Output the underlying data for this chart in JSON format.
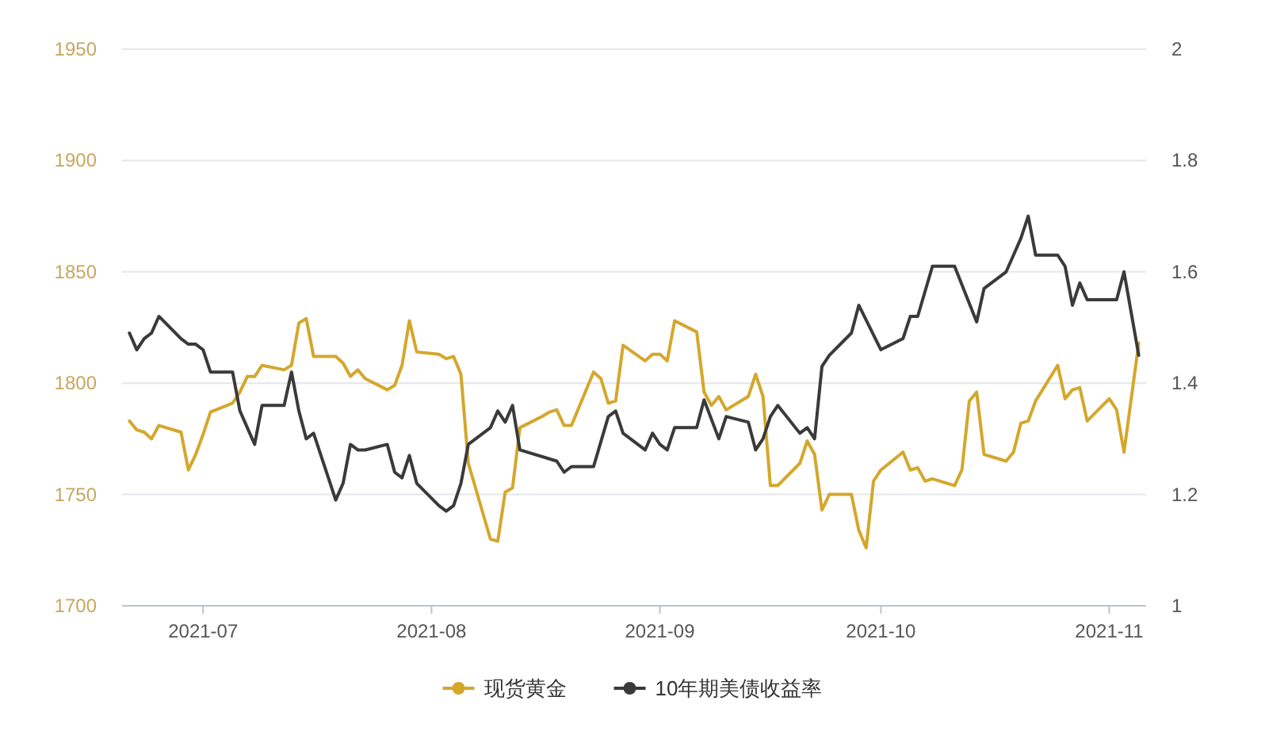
{
  "chart_data": {
    "type": "line",
    "xlim": [
      "2021-06-20",
      "2021-11-06"
    ],
    "xticks": [
      "2021-07",
      "2021-08",
      "2021-09",
      "2021-10",
      "2021-11"
    ],
    "ylim": [
      1700,
      1950
    ],
    "yticks": [
      1700,
      1750,
      1800,
      1850,
      1900,
      1950
    ],
    "y2lim": [
      1,
      2
    ],
    "y2ticks": [
      1,
      1.2,
      1.4,
      1.6,
      1.8,
      2
    ],
    "grid": "y",
    "legend": "bottom",
    "series": [
      {
        "name": "现货黄金",
        "color": "#d4a72c",
        "axis": "y",
        "x": [
          "2021-06-21",
          "2021-06-22",
          "2021-06-23",
          "2021-06-24",
          "2021-06-25",
          "2021-06-28",
          "2021-06-29",
          "2021-06-30",
          "2021-07-01",
          "2021-07-02",
          "2021-07-05",
          "2021-07-06",
          "2021-07-07",
          "2021-07-08",
          "2021-07-09",
          "2021-07-12",
          "2021-07-13",
          "2021-07-14",
          "2021-07-15",
          "2021-07-16",
          "2021-07-19",
          "2021-07-20",
          "2021-07-21",
          "2021-07-22",
          "2021-07-23",
          "2021-07-26",
          "2021-07-27",
          "2021-07-28",
          "2021-07-29",
          "2021-07-30",
          "2021-08-02",
          "2021-08-03",
          "2021-08-04",
          "2021-08-05",
          "2021-08-06",
          "2021-08-09",
          "2021-08-10",
          "2021-08-11",
          "2021-08-12",
          "2021-08-13",
          "2021-08-16",
          "2021-08-17",
          "2021-08-18",
          "2021-08-19",
          "2021-08-20",
          "2021-08-23",
          "2021-08-24",
          "2021-08-25",
          "2021-08-26",
          "2021-08-27",
          "2021-08-30",
          "2021-08-31",
          "2021-09-01",
          "2021-09-02",
          "2021-09-03",
          "2021-09-06",
          "2021-09-07",
          "2021-09-08",
          "2021-09-09",
          "2021-09-10",
          "2021-09-13",
          "2021-09-14",
          "2021-09-15",
          "2021-09-16",
          "2021-09-17",
          "2021-09-20",
          "2021-09-21",
          "2021-09-22",
          "2021-09-23",
          "2021-09-24",
          "2021-09-27",
          "2021-09-28",
          "2021-09-29",
          "2021-09-30",
          "2021-10-01",
          "2021-10-04",
          "2021-10-05",
          "2021-10-06",
          "2021-10-07",
          "2021-10-08",
          "2021-10-11",
          "2021-10-12",
          "2021-10-13",
          "2021-10-14",
          "2021-10-15",
          "2021-10-18",
          "2021-10-19",
          "2021-10-20",
          "2021-10-21",
          "2021-10-22",
          "2021-10-25",
          "2021-10-26",
          "2021-10-27",
          "2021-10-28",
          "2021-10-29",
          "2021-11-01",
          "2021-11-02",
          "2021-11-03",
          "2021-11-05"
        ],
        "values": [
          1783,
          1779,
          1778,
          1775,
          1781,
          1778,
          1761,
          1768,
          1777,
          1787,
          1791,
          1796,
          1803,
          1803,
          1808,
          1806,
          1808,
          1827,
          1829,
          1812,
          1812,
          1809,
          1803,
          1806,
          1802,
          1797,
          1799,
          1808,
          1828,
          1814,
          1813,
          1811,
          1812,
          1804,
          1764,
          1730,
          1729,
          1751,
          1753,
          1780,
          1785,
          1787,
          1788,
          1781,
          1781,
          1805,
          1802,
          1791,
          1792,
          1817,
          1810,
          1813,
          1813,
          1810,
          1828,
          1823,
          1796,
          1790,
          1794,
          1788,
          1794,
          1804,
          1794,
          1754,
          1754,
          1764,
          1774,
          1768,
          1743,
          1750,
          1750,
          1734,
          1726,
          1756,
          1761,
          1769,
          1761,
          1762,
          1756,
          1757,
          1754,
          1761,
          1792,
          1796,
          1768,
          1765,
          1769,
          1782,
          1783,
          1792,
          1808,
          1793,
          1797,
          1798,
          1783,
          1793,
          1788,
          1769,
          1818
        ]
      },
      {
        "name": "10年期美债收益率",
        "color": "#3a3a3a",
        "axis": "y2",
        "x": [
          "2021-06-21",
          "2021-06-22",
          "2021-06-23",
          "2021-06-24",
          "2021-06-25",
          "2021-06-28",
          "2021-06-29",
          "2021-06-30",
          "2021-07-01",
          "2021-07-02",
          "2021-07-05",
          "2021-07-06",
          "2021-07-07",
          "2021-07-08",
          "2021-07-09",
          "2021-07-12",
          "2021-07-13",
          "2021-07-14",
          "2021-07-15",
          "2021-07-16",
          "2021-07-19",
          "2021-07-20",
          "2021-07-21",
          "2021-07-22",
          "2021-07-23",
          "2021-07-26",
          "2021-07-27",
          "2021-07-28",
          "2021-07-29",
          "2021-07-30",
          "2021-08-02",
          "2021-08-03",
          "2021-08-04",
          "2021-08-05",
          "2021-08-06",
          "2021-08-09",
          "2021-08-10",
          "2021-08-11",
          "2021-08-12",
          "2021-08-13",
          "2021-08-18",
          "2021-08-19",
          "2021-08-20",
          "2021-08-23",
          "2021-08-25",
          "2021-08-26",
          "2021-08-27",
          "2021-08-30",
          "2021-08-31",
          "2021-09-01",
          "2021-09-02",
          "2021-09-03",
          "2021-09-06",
          "2021-09-07",
          "2021-09-09",
          "2021-09-10",
          "2021-09-13",
          "2021-09-14",
          "2021-09-15",
          "2021-09-16",
          "2021-09-17",
          "2021-09-20",
          "2021-09-21",
          "2021-09-22",
          "2021-09-23",
          "2021-09-24",
          "2021-09-27",
          "2021-09-28",
          "2021-10-01",
          "2021-10-04",
          "2021-10-05",
          "2021-10-06",
          "2021-10-08",
          "2021-10-11",
          "2021-10-14",
          "2021-10-15",
          "2021-10-18",
          "2021-10-19",
          "2021-10-20",
          "2021-10-21",
          "2021-10-22",
          "2021-10-25",
          "2021-10-26",
          "2021-10-27",
          "2021-10-28",
          "2021-10-29",
          "2021-11-01",
          "2021-11-02",
          "2021-11-03",
          "2021-11-05"
        ],
        "values": [
          1.49,
          1.46,
          1.48,
          1.49,
          1.52,
          1.48,
          1.47,
          1.47,
          1.46,
          1.42,
          1.42,
          1.35,
          1.32,
          1.29,
          1.36,
          1.36,
          1.42,
          1.35,
          1.3,
          1.31,
          1.19,
          1.22,
          1.29,
          1.28,
          1.28,
          1.29,
          1.24,
          1.23,
          1.27,
          1.22,
          1.18,
          1.17,
          1.18,
          1.22,
          1.29,
          1.32,
          1.35,
          1.33,
          1.36,
          1.28,
          1.26,
          1.24,
          1.25,
          1.25,
          1.34,
          1.35,
          1.31,
          1.28,
          1.31,
          1.29,
          1.28,
          1.32,
          1.32,
          1.37,
          1.3,
          1.34,
          1.33,
          1.28,
          1.3,
          1.34,
          1.36,
          1.31,
          1.32,
          1.3,
          1.43,
          1.45,
          1.49,
          1.54,
          1.46,
          1.48,
          1.52,
          1.52,
          1.61,
          1.61,
          1.51,
          1.57,
          1.6,
          1.63,
          1.66,
          1.7,
          1.63,
          1.63,
          1.61,
          1.54,
          1.58,
          1.55,
          1.55,
          1.55,
          1.6,
          1.45
        ]
      }
    ]
  }
}
